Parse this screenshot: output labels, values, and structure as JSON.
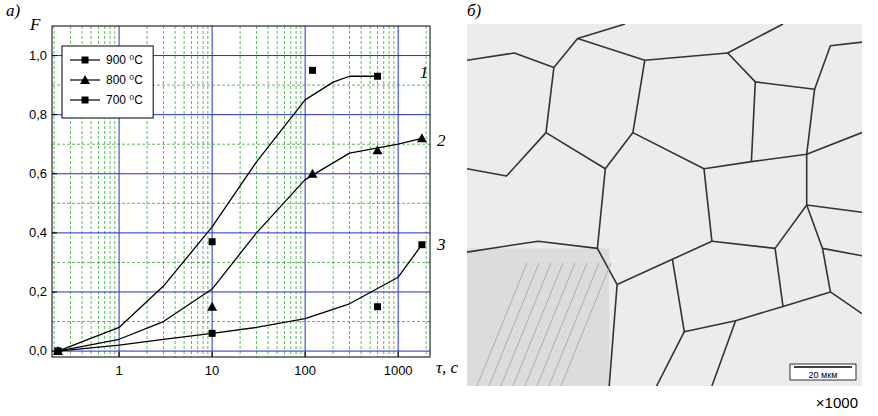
{
  "chart_data": {
    "type": "scatter",
    "panel_label": "а)",
    "x_label": "τ, с",
    "y_label": "F",
    "log": "x",
    "grid": true,
    "legend": "upper-left",
    "xlim": [
      0.19,
      2200
    ],
    "ylim": [
      -0.02,
      1.1
    ],
    "xticks": [
      1,
      10,
      100,
      1000
    ],
    "yticks": [
      {
        "value": 0,
        "label": "0,0"
      },
      {
        "value": 0.2,
        "label": "0,2"
      },
      {
        "value": 0.4,
        "label": "0,4"
      },
      {
        "value": 0.6,
        "label": "0,6"
      },
      {
        "value": 0.8,
        "label": "0,8"
      },
      {
        "value": 1.0,
        "label": "1,0"
      }
    ],
    "series": [
      {
        "name": "900 ⁰C",
        "type": "scatter",
        "marker": "square",
        "color": "#000000",
        "x": [
          0.22,
          10,
          120,
          600
        ],
        "values": [
          0,
          0.37,
          0.95,
          0.93
        ]
      },
      {
        "name": "800 ⁰C",
        "type": "scatter",
        "marker": "triangle",
        "color": "#000000",
        "x": [
          0.22,
          10,
          120,
          600,
          1800
        ],
        "values": [
          0,
          0.15,
          0.6,
          0.68,
          0.72
        ]
      },
      {
        "name": "700 ⁰C",
        "type": "scatter",
        "marker": "square",
        "color": "#000000",
        "x": [
          0.22,
          10,
          600,
          1800
        ],
        "values": [
          0,
          0.06,
          0.15,
          0.36
        ]
      },
      {
        "type": "line",
        "line_style": "solid",
        "color": "#000000",
        "x": [
          0.22,
          1,
          3,
          10,
          30,
          100,
          200,
          300,
          600
        ],
        "values": [
          0,
          0.08,
          0.22,
          0.42,
          0.64,
          0.85,
          0.91,
          0.93,
          0.93
        ]
      },
      {
        "type": "line",
        "line_style": "solid",
        "color": "#000000",
        "x": [
          0.22,
          1,
          3,
          10,
          30,
          100,
          300,
          1000,
          1800
        ],
        "values": [
          0,
          0.04,
          0.1,
          0.21,
          0.4,
          0.58,
          0.67,
          0.7,
          0.72
        ]
      },
      {
        "type": "line",
        "line_style": "solid",
        "color": "#000000",
        "x": [
          0.22,
          1,
          3,
          10,
          30,
          100,
          300,
          1000,
          1800
        ],
        "values": [
          0,
          0.02,
          0.04,
          0.06,
          0.08,
          0.11,
          0.16,
          0.25,
          0.36
        ]
      }
    ],
    "annotations": [
      {
        "text": "1",
        "x": 1900,
        "y": 0.94
      },
      {
        "text": "2",
        "x": 2900,
        "y": 0.71
      },
      {
        "text": "3",
        "x": 2900,
        "y": 0.36
      }
    ]
  },
  "image": {
    "panel_label": "б)",
    "scale_bar": "20 мкм",
    "magnification": "×1000"
  }
}
